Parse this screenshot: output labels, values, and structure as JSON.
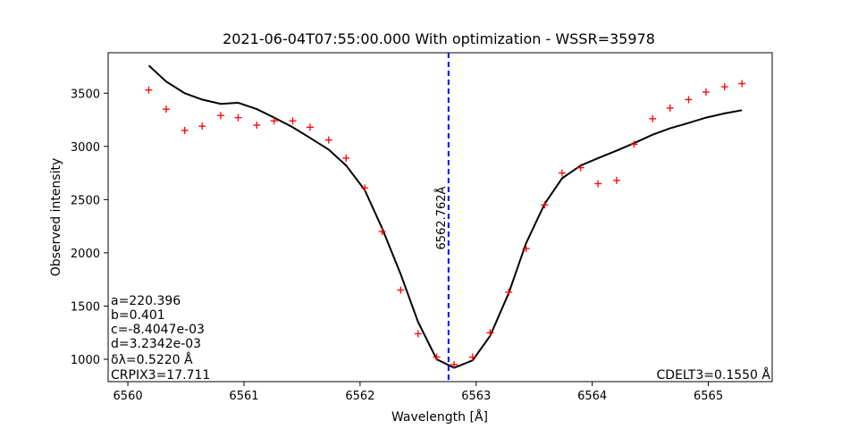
{
  "chart_data": {
    "type": "line",
    "title": "2021-06-04T07:55:00.000 With optimization - WSSR=35978",
    "xlabel": "Wavelength [Å]",
    "ylabel": "Observed intensity",
    "xlim": [
      6559.83,
      6565.55
    ],
    "ylim": [
      790,
      3880
    ],
    "x_ticks": [
      6560,
      6561,
      6562,
      6563,
      6564,
      6565
    ],
    "y_ticks": [
      1000,
      1500,
      2000,
      2500,
      3000,
      3500
    ],
    "grid": false,
    "observed": {
      "marker": "+",
      "color": "#ff0000",
      "x": [
        6560.18,
        6560.33,
        6560.49,
        6560.64,
        6560.8,
        6560.95,
        6561.11,
        6561.26,
        6561.42,
        6561.57,
        6561.73,
        6561.88,
        6562.04,
        6562.19,
        6562.35,
        6562.5,
        6562.66,
        6562.81,
        6562.97,
        6563.12,
        6563.28,
        6563.43,
        6563.59,
        6563.74,
        6563.9,
        6564.05,
        6564.21,
        6564.36,
        6564.52,
        6564.67,
        6564.83,
        6564.98,
        6565.14,
        6565.29
      ],
      "y": [
        3530,
        3350,
        3150,
        3190,
        3290,
        3270,
        3200,
        3240,
        3240,
        3180,
        3060,
        2890,
        2610,
        2200,
        1650,
        1240,
        1020,
        950,
        1020,
        1250,
        1630,
        2040,
        2450,
        2750,
        2800,
        2650,
        2680,
        3020,
        3260,
        3360,
        3440,
        3510,
        3560,
        3590
      ]
    },
    "fit": {
      "color": "#000000",
      "x": [
        6560.18,
        6560.33,
        6560.49,
        6560.64,
        6560.8,
        6560.95,
        6561.11,
        6561.26,
        6561.42,
        6561.57,
        6561.73,
        6561.88,
        6562.04,
        6562.19,
        6562.35,
        6562.5,
        6562.66,
        6562.81,
        6562.97,
        6563.12,
        6563.28,
        6563.43,
        6563.59,
        6563.74,
        6563.9,
        6564.05,
        6564.21,
        6564.36,
        6564.52,
        6564.67,
        6564.83,
        6564.98,
        6565.14,
        6565.29
      ],
      "y": [
        3760,
        3610,
        3500,
        3440,
        3400,
        3410,
        3350,
        3270,
        3180,
        3080,
        2970,
        2820,
        2590,
        2230,
        1800,
        1350,
        1000,
        920,
        990,
        1220,
        1620,
        2090,
        2460,
        2700,
        2820,
        2890,
        2960,
        3030,
        3110,
        3170,
        3220,
        3270,
        3310,
        3340
      ]
    },
    "center_line": {
      "x": 6562.762,
      "label": "6562.762Å",
      "color": "#0000ff"
    },
    "annotations_left": [
      "a=220.396",
      "b=0.401",
      "c=-8.4047e-03",
      "d=3.2342e-03",
      "δλ=0.5220 Å",
      "CRPIX3=17.711"
    ],
    "annotation_right": "CDELT3=0.1550 Å"
  }
}
